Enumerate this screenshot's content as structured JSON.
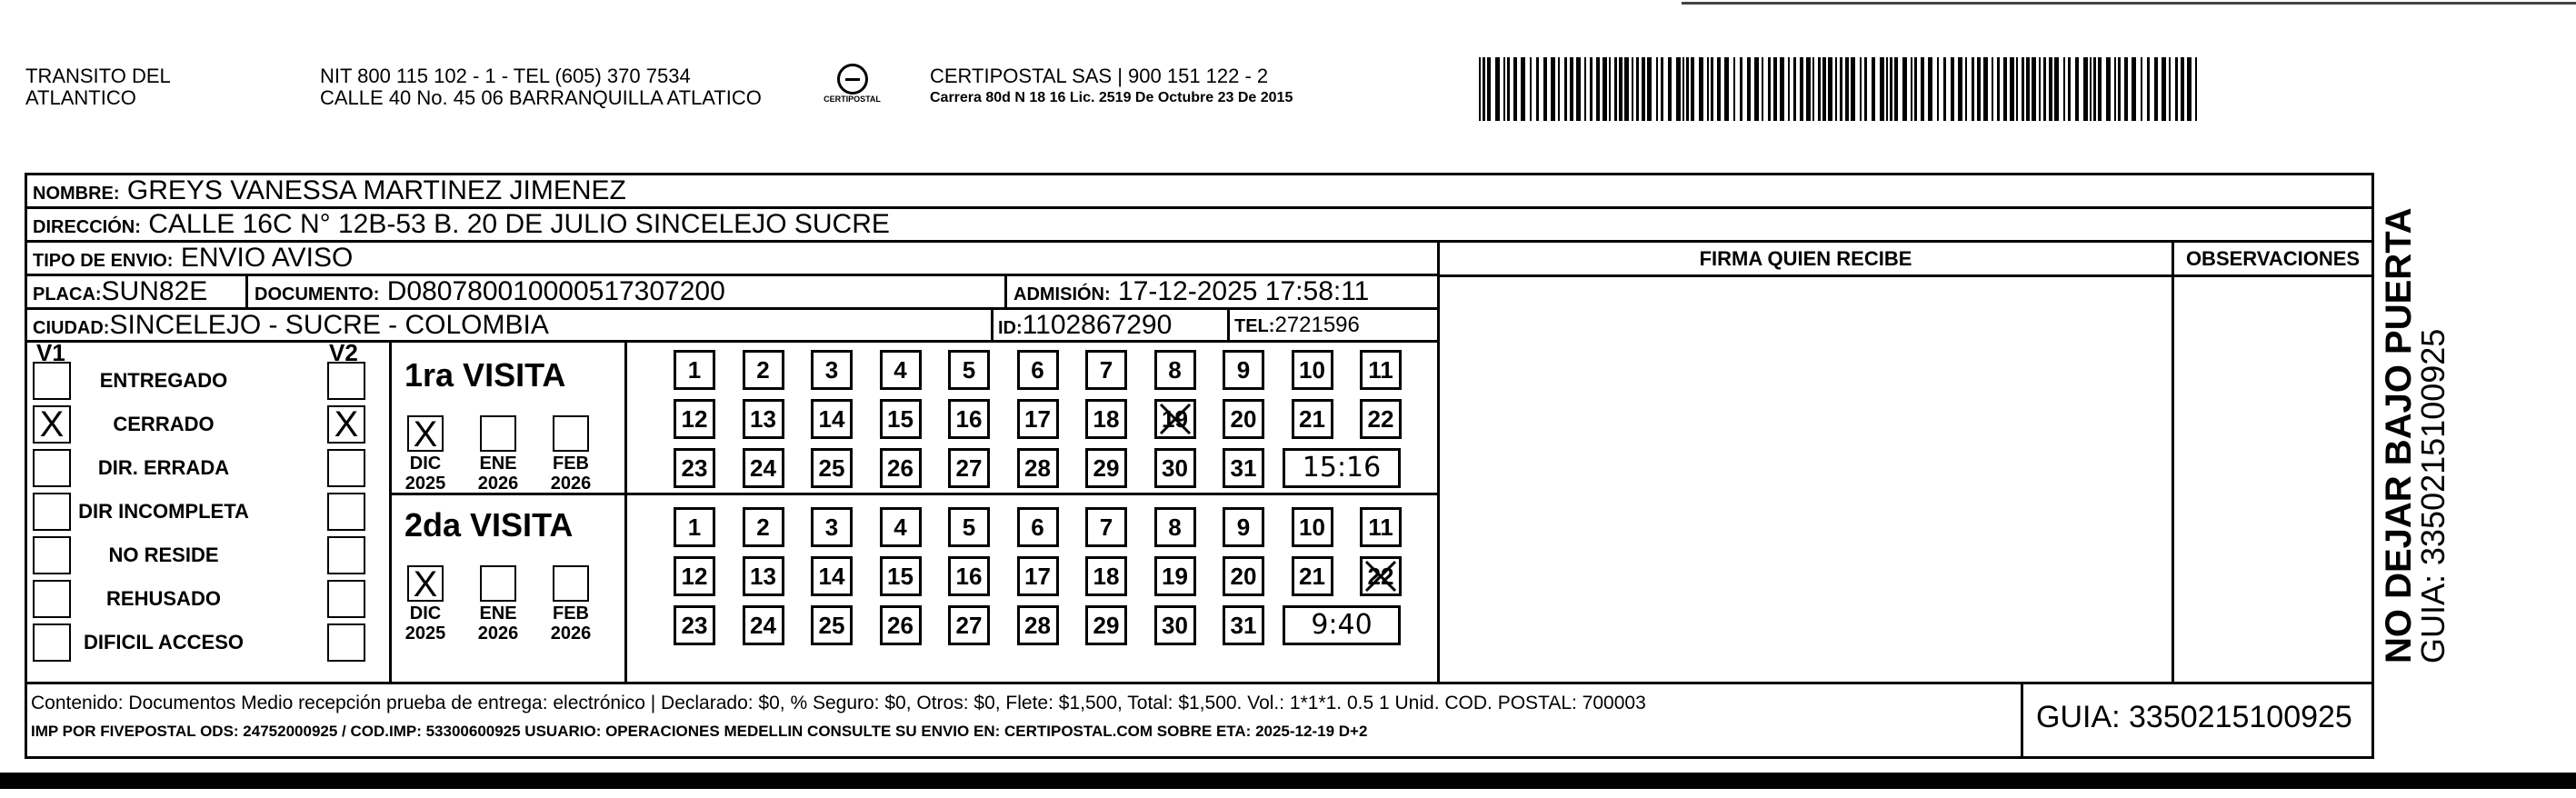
{
  "header": {
    "sender_line1": "TRANSITO DEL",
    "sender_line2": "ATLANTICO",
    "nit": "NIT 800 115 102 - 1 - TEL (605) 370 7534",
    "address": "CALLE 40 No. 45 06 BARRANQUILLA ATLATICO",
    "logo_text": "CERTIPOSTAL",
    "company": "CERTIPOSTAL SAS | 900 151 122 - 2",
    "company_address": "Carrera 80d N 18 16  Lic. 2519 De Octubre 23 De 2015"
  },
  "recipient": {
    "nombre_label": "NOMBRE:",
    "nombre": "GREYS VANESSA MARTINEZ JIMENEZ",
    "direccion_label": "DIRECCIÓN:",
    "direccion": "CALLE 16C N° 12B-53 B. 20 DE JULIO SINCELEJO SUCRE",
    "tipo_label": "TIPO DE ENVIO:",
    "tipo": "ENVIO AVISO",
    "placa_label": "PLACA:",
    "placa": "SUN82E",
    "documento_label": "DOCUMENTO:",
    "documento": "D080780010000517307200",
    "admision_label": "ADMISIÓN:",
    "admision": "17-12-2025 17:58:11",
    "ciudad_label": "CIUDAD:",
    "ciudad": "SINCELEJO - SUCRE - COLOMBIA",
    "id_label": "ID:",
    "id": "1102867290",
    "tel_label": "TEL:",
    "tel": "2721596"
  },
  "columns": {
    "firma": "FIRMA QUIEN RECIBE",
    "observaciones": "OBSERVACIONES"
  },
  "status": {
    "v1": "V1",
    "v2": "V2",
    "items": [
      {
        "label": "ENTREGADO",
        "v1": "",
        "v2": ""
      },
      {
        "label": "CERRADO",
        "v1": "X",
        "v2": "X"
      },
      {
        "label": "DIR. ERRADA",
        "v1": "",
        "v2": ""
      },
      {
        "label": "DIR INCOMPLETA",
        "v1": "",
        "v2": ""
      },
      {
        "label": "NO RESIDE",
        "v1": "",
        "v2": ""
      },
      {
        "label": "REHUSADO",
        "v1": "",
        "v2": ""
      },
      {
        "label": "DIFICIL ACCESO",
        "v1": "",
        "v2": ""
      }
    ]
  },
  "visits": [
    {
      "title": "1ra VISITA",
      "months": [
        {
          "m": "DIC",
          "y": "2025",
          "mark": "X"
        },
        {
          "m": "ENE",
          "y": "2026",
          "mark": ""
        },
        {
          "m": "FEB",
          "y": "2026",
          "mark": ""
        }
      ],
      "marked_day": 19,
      "time": "15:16"
    },
    {
      "title": "2da VISITA",
      "months": [
        {
          "m": "DIC",
          "y": "2025",
          "mark": "X"
        },
        {
          "m": "ENE",
          "y": "2026",
          "mark": ""
        },
        {
          "m": "FEB",
          "y": "2026",
          "mark": ""
        }
      ],
      "marked_day": 22,
      "time": "9:40"
    }
  ],
  "footer": {
    "line1": "Contenido: Documentos Medio recepción prueba de entrega: electrónico | Declarado: $0, % Seguro: $0, Otros: $0, Flete: $1,500, Total: $1,500. Vol.: 1*1*1. 0.5  1 Unid. COD. POSTAL: 700003",
    "line2": "IMP POR FIVEPOSTAL ODS: 24752000925 / COD.IMP: 53300600925 USUARIO: OPERACIONES MEDELLIN CONSULTE SU ENVIO EN: CERTIPOSTAL.COM SOBRE ETA: 2025-12-19 D+2",
    "guia": "GUIA: 3350215100925"
  },
  "side": {
    "warning": "NO DEJAR BAJO PUERTA",
    "guia": "GUIA: 3350215100925"
  }
}
